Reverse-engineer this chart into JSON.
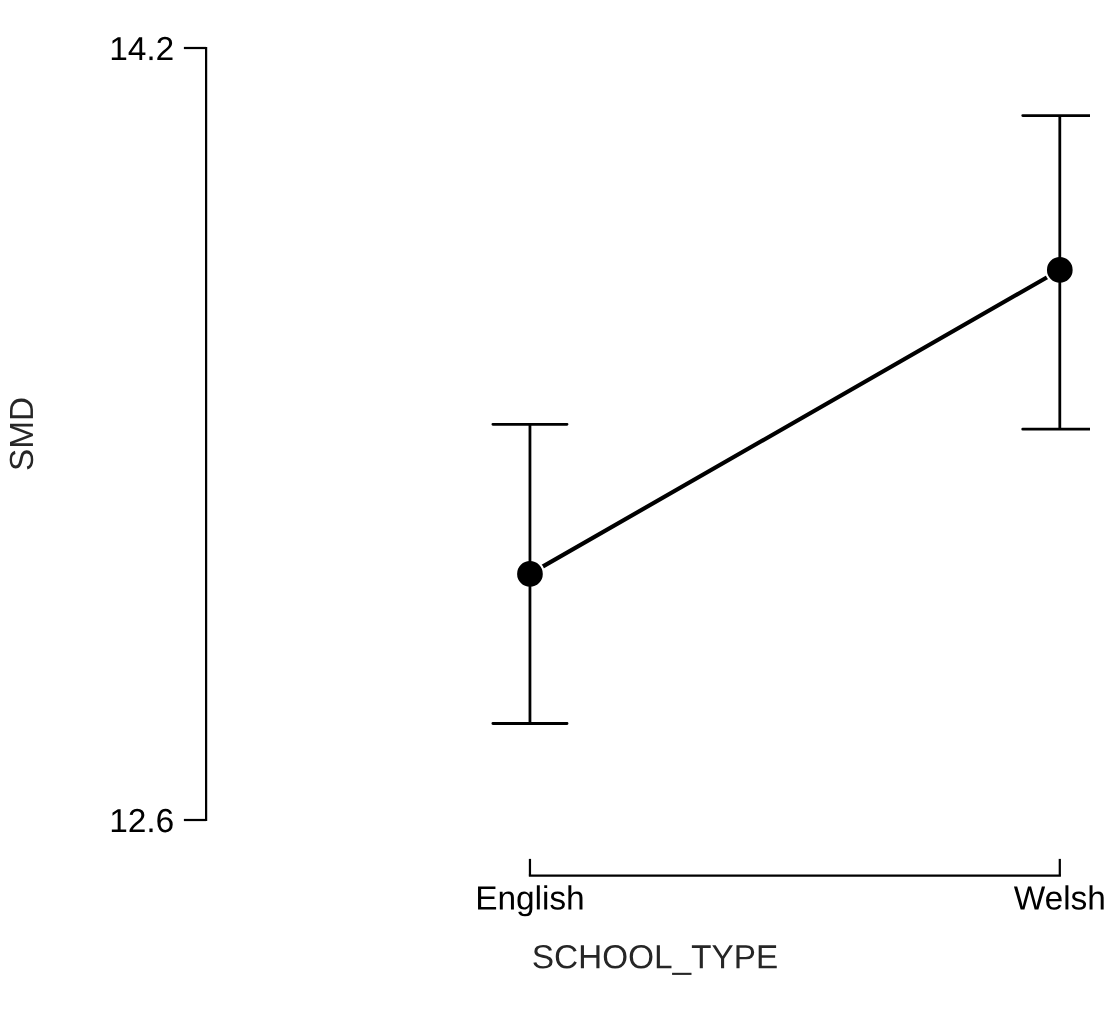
{
  "chart_data": {
    "type": "line",
    "xlabel": "SCHOOL_TYPE",
    "ylabel": "SMD",
    "categories": [
      "English",
      "Welsh"
    ],
    "values": [
      13.11,
      13.74
    ],
    "errors": [
      [
        12.8,
        13.42
      ],
      [
        13.41,
        14.06
      ]
    ],
    "color": "#000000",
    "ylim": [
      12.6,
      14.2
    ],
    "yticks": [
      12.6,
      14.2
    ],
    "grid": false,
    "marker": "circle",
    "line_style": "solid"
  }
}
